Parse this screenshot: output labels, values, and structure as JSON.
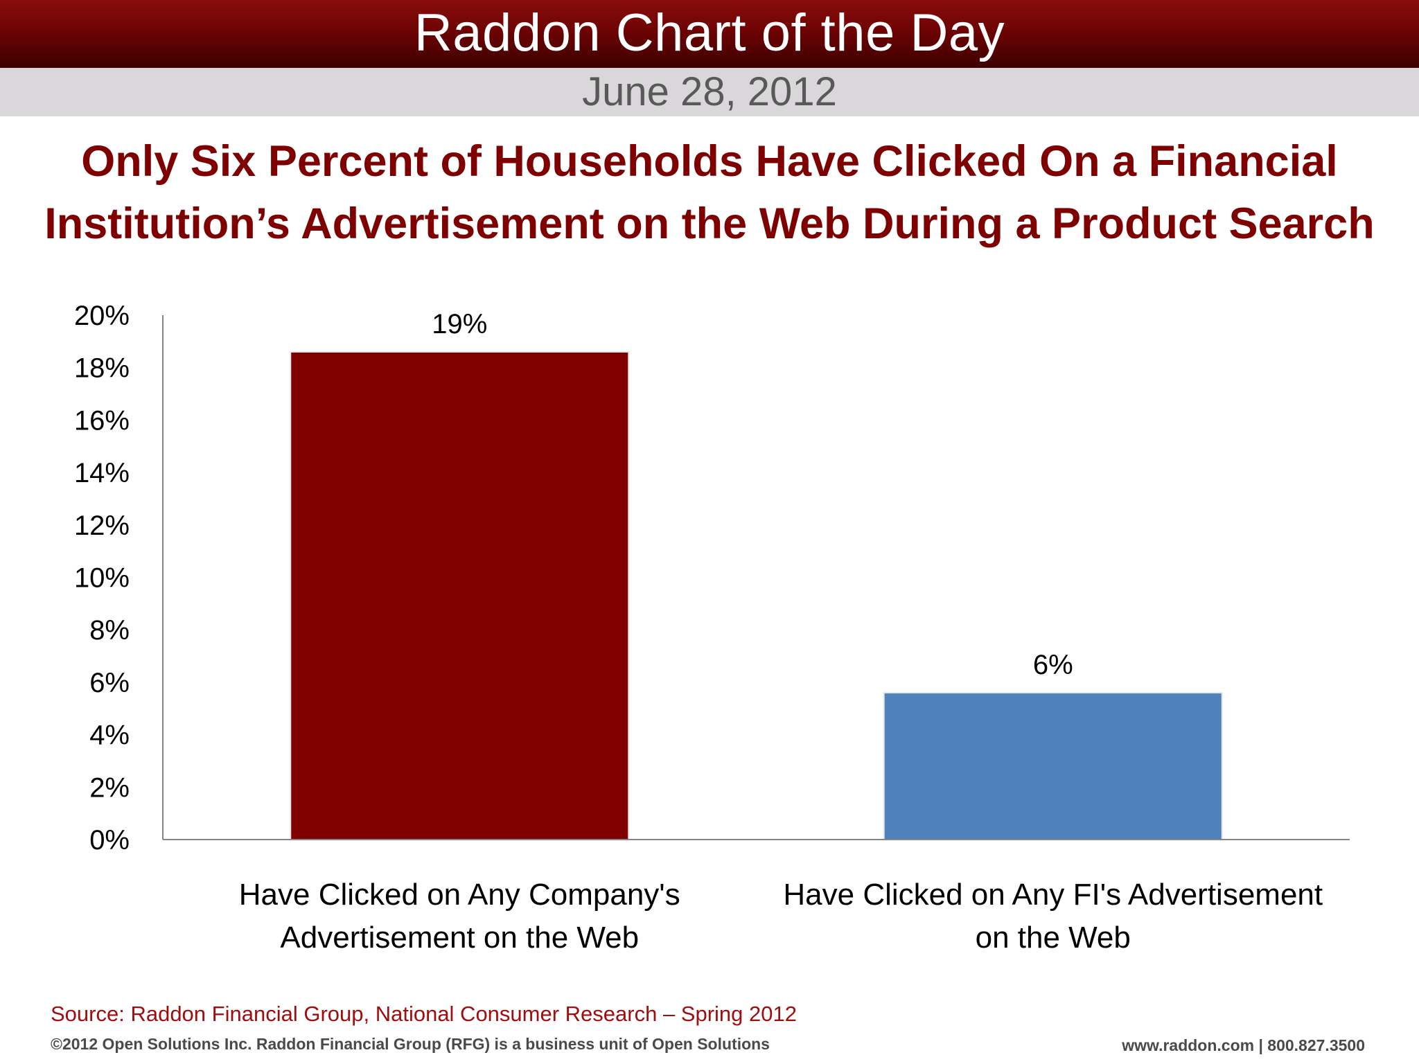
{
  "header": {
    "title": "Raddon Chart of the Day",
    "date": "June 28, 2012"
  },
  "headline": {
    "line1": "Only Six Percent of Households Have Clicked On a Financial",
    "line2": "Institution’s Advertisement on the Web During a Product Search"
  },
  "chart_data": {
    "type": "bar",
    "categories": [
      [
        "Have Clicked on Any Company's",
        "Advertisement on the Web"
      ],
      [
        "Have Clicked on Any FI's Advertisement",
        "on the Web"
      ]
    ],
    "values": [
      18.6,
      5.6
    ],
    "data_labels": [
      "19%",
      "6%"
    ],
    "bar_colors": [
      "#800000",
      "#4f81bd"
    ],
    "y_ticks": [
      "0%",
      "2%",
      "4%",
      "6%",
      "8%",
      "10%",
      "12%",
      "14%",
      "16%",
      "18%",
      "20%"
    ],
    "ylim": [
      0,
      20
    ],
    "grid": false,
    "legend": "none"
  },
  "footer": {
    "source": "Source: Raddon Financial Group, National Consumer Research – Spring 2012",
    "copyright": "©2012 Open Solutions Inc.  Raddon Financial Group (RFG) is a business unit of Open Solutions",
    "contact": "www.raddon.com  |  800.827.3500"
  }
}
